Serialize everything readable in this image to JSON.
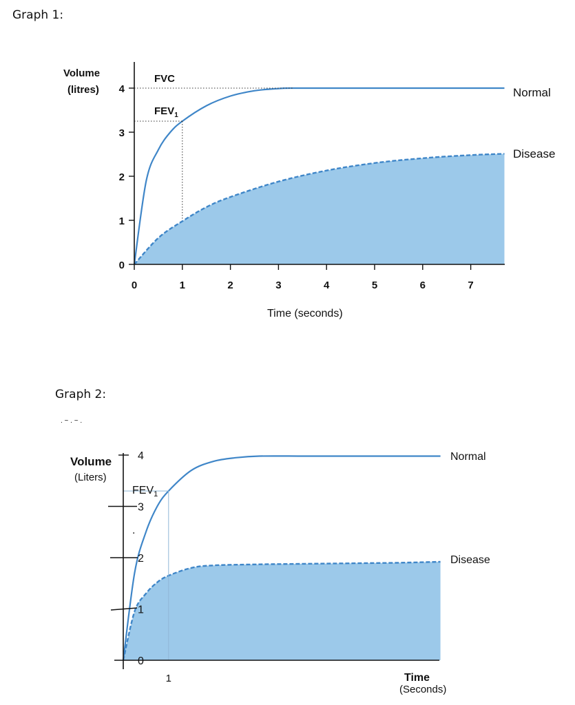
{
  "page": {
    "graph1_label": "Graph 1:",
    "graph2_label": "Graph 2:"
  },
  "chart_data": [
    {
      "type": "area",
      "title": "",
      "xlabel": "Time (seconds)",
      "ylabel_line1": "Volume",
      "ylabel_line2": "(litres)",
      "xlim": [
        0,
        7.7
      ],
      "ylim": [
        0,
        4
      ],
      "x_ticks": [
        "0",
        "1",
        "2",
        "3",
        "4",
        "5",
        "6",
        "7"
      ],
      "y_ticks": [
        "0",
        "1",
        "2",
        "3",
        "4"
      ],
      "annotations": {
        "fvc": "FVC",
        "fev_main": "FEV",
        "fev_sub": "1"
      },
      "fvc_value": 4,
      "fev1_value": 3.25,
      "fev1_time": 1,
      "series": [
        {
          "name": "Normal",
          "style": "solid",
          "x": [
            0,
            0.25,
            0.5,
            0.75,
            1,
            1.5,
            2,
            2.5,
            3,
            3.3,
            4,
            5,
            6,
            7,
            7.7
          ],
          "y": [
            0,
            1.9,
            2.6,
            3.0,
            3.25,
            3.6,
            3.82,
            3.94,
            3.99,
            4.0,
            4.0,
            4.0,
            4.0,
            4.0,
            4.0
          ]
        },
        {
          "name": "Disease",
          "style": "dashed",
          "filled": true,
          "x": [
            0,
            0.5,
            1,
            1.5,
            2,
            3,
            4,
            5,
            6,
            7,
            7.7
          ],
          "y": [
            0,
            0.6,
            0.98,
            1.3,
            1.53,
            1.88,
            2.13,
            2.3,
            2.41,
            2.48,
            2.51
          ]
        }
      ]
    },
    {
      "type": "area",
      "title": "",
      "xlabel": "Time",
      "xlabel_sub": "(Seconds)",
      "ylabel_line1": "Volume",
      "ylabel_line2": "(Liters)",
      "xlim": [
        0,
        7
      ],
      "ylim": [
        0,
        4
      ],
      "x_ticks": [
        "1"
      ],
      "y_ticks": [
        "0",
        "1",
        "2",
        "3",
        "4"
      ],
      "annotations": {
        "fev_main": "FEV",
        "fev_sub": "1"
      },
      "fev1_value": 3.3,
      "fev1_time": 1,
      "series": [
        {
          "name": "Normal",
          "style": "solid",
          "x": [
            0,
            0.25,
            0.5,
            0.75,
            1,
            1.5,
            2,
            2.5,
            3,
            4,
            5,
            6,
            7
          ],
          "y": [
            0,
            1.7,
            2.5,
            3.0,
            3.3,
            3.7,
            3.88,
            3.95,
            3.98,
            3.98,
            3.98,
            3.98,
            3.98
          ]
        },
        {
          "name": "Disease",
          "style": "dashed",
          "filled": true,
          "x": [
            0,
            0.25,
            0.5,
            0.75,
            1,
            1.5,
            2,
            3,
            4,
            5,
            6,
            7
          ],
          "y": [
            0,
            0.95,
            1.3,
            1.52,
            1.65,
            1.8,
            1.85,
            1.87,
            1.88,
            1.89,
            1.9,
            1.92
          ]
        }
      ]
    }
  ]
}
